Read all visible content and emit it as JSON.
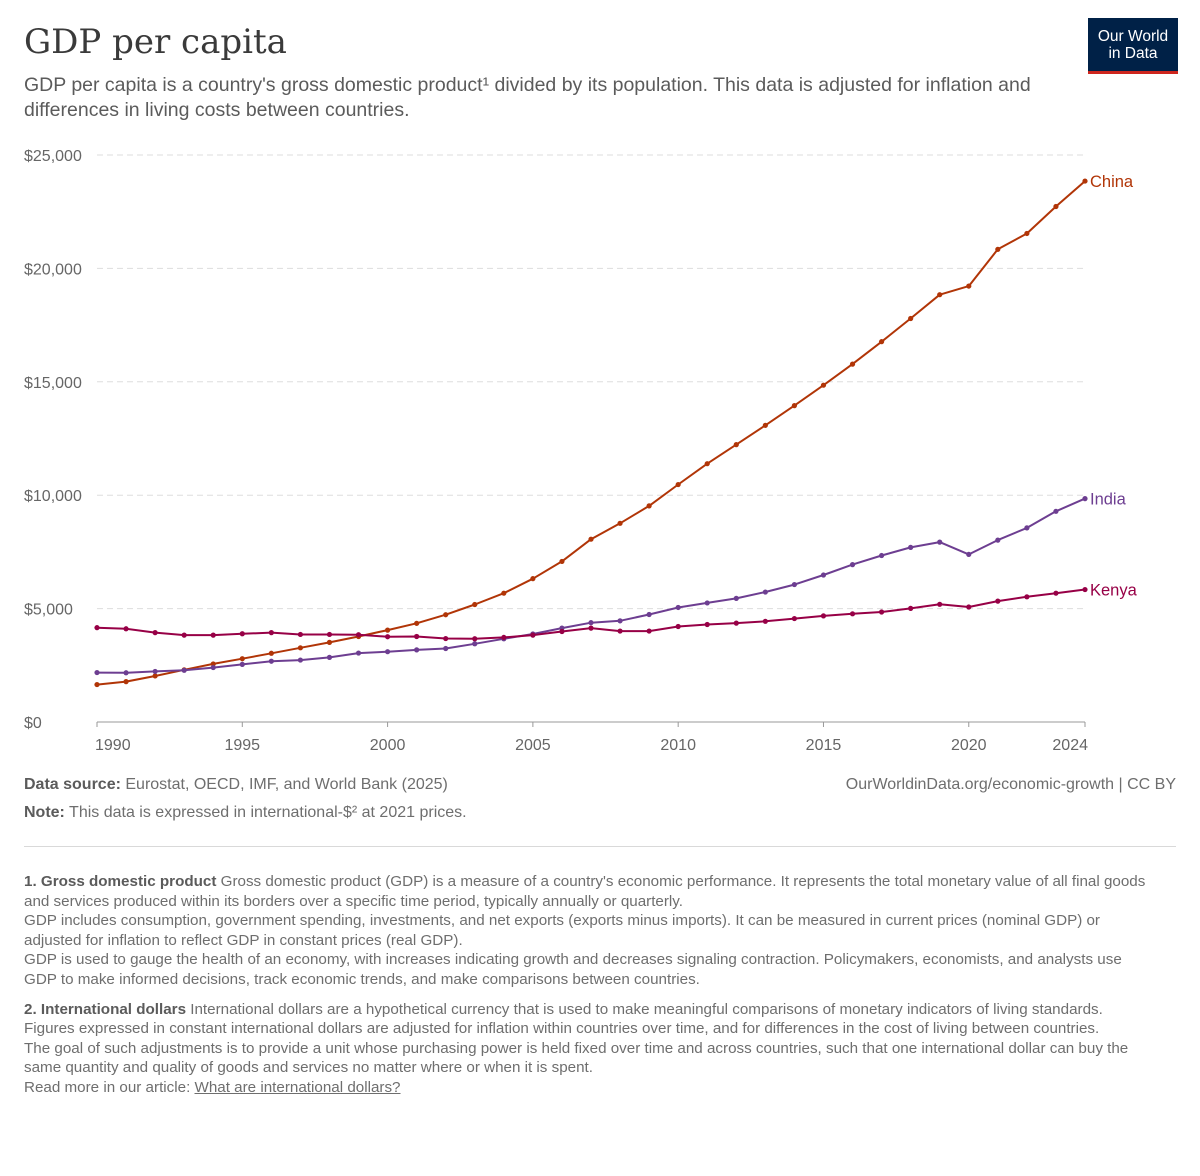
{
  "header": {
    "title": "GDP per capita",
    "subtitle": "GDP per capita is a country's gross domestic product¹ divided by its population. This data is adjusted for inflation and differences in living costs between countries.",
    "logo_line1": "Our World",
    "logo_line2": "in Data"
  },
  "chart_data": {
    "type": "line",
    "title": "GDP per capita",
    "xlabel": "",
    "ylabel": "",
    "xlim": [
      1990,
      2024
    ],
    "ylim": [
      0,
      25000
    ],
    "grid": "horizontal dashed",
    "legend": "inline labels at line ends",
    "x_ticks": [
      1990,
      1995,
      2000,
      2005,
      2010,
      2015,
      2020,
      2024
    ],
    "x_tick_labels": [
      "1990",
      "1995",
      "2000",
      "2005",
      "2010",
      "2015",
      "2020",
      "2024"
    ],
    "y_ticks": [
      0,
      5000,
      10000,
      15000,
      20000,
      25000
    ],
    "y_tick_labels": [
      "$0",
      "$5,000",
      "$10,000",
      "$15,000",
      "$20,000",
      "$25,000"
    ],
    "x": [
      1990,
      1991,
      1992,
      1993,
      1994,
      1995,
      1996,
      1997,
      1998,
      1999,
      2000,
      2001,
      2002,
      2003,
      2004,
      2005,
      2006,
      2007,
      2008,
      2009,
      2010,
      2011,
      2012,
      2013,
      2014,
      2015,
      2016,
      2017,
      2018,
      2019,
      2020,
      2021,
      2022,
      2023,
      2024
    ],
    "series": [
      {
        "name": "China",
        "color": "#b13507",
        "values": [
          1650,
          1780,
          2030,
          2300,
          2560,
          2790,
          3030,
          3270,
          3510,
          3770,
          4050,
          4350,
          4730,
          5180,
          5680,
          6320,
          7080,
          8060,
          8760,
          9530,
          10470,
          11390,
          12230,
          13080,
          13950,
          14850,
          15780,
          16770,
          17790,
          18840,
          19220,
          20840,
          21540,
          22730,
          23850
        ]
      },
      {
        "name": "India",
        "color": "#6d3e91",
        "values": [
          2180,
          2170,
          2230,
          2280,
          2400,
          2540,
          2680,
          2730,
          2850,
          3040,
          3100,
          3180,
          3240,
          3450,
          3670,
          3880,
          4140,
          4380,
          4460,
          4740,
          5050,
          5250,
          5450,
          5730,
          6060,
          6480,
          6940,
          7340,
          7700,
          7930,
          7390,
          8020,
          8560,
          9290,
          9850
        ]
      },
      {
        "name": "Kenya",
        "color": "#970046",
        "values": [
          4160,
          4110,
          3940,
          3830,
          3830,
          3890,
          3940,
          3860,
          3860,
          3850,
          3760,
          3770,
          3680,
          3670,
          3730,
          3830,
          3990,
          4140,
          4010,
          4010,
          4210,
          4300,
          4360,
          4440,
          4560,
          4680,
          4770,
          4850,
          5010,
          5190,
          5070,
          5330,
          5520,
          5680,
          5840
        ]
      }
    ]
  },
  "sources": {
    "data_source_label": "Data source:",
    "data_source_text": " Eurostat, OECD, IMF, and World Bank (2025)",
    "note_label": "Note:",
    "note_text": " This data is expressed in international-$² at 2021 prices.",
    "url": "OurWorldinData.org/economic-growth | CC BY"
  },
  "footnotes": {
    "fn1_title": "1. Gross domestic product",
    "fn1_p1": " Gross domestic product (GDP) is a measure of a country's economic performance. It represents the total monetary value of all final goods and services produced within its borders over a specific time period, typically annually or quarterly.",
    "fn1_p2": "GDP includes consumption, government spending, investments, and net exports (exports minus imports). It can be measured in current prices (nominal GDP) or adjusted for inflation to reflect GDP in constant prices (real GDP).",
    "fn1_p3": "GDP is used to gauge the health of an economy, with increases indicating growth and decreases signaling contraction. Policymakers, economists, and analysts use GDP to make informed decisions, track economic trends, and make comparisons between countries.",
    "fn2_title": "2. International dollars",
    "fn2_p1": " International dollars are a hypothetical currency that is used to make meaningful comparisons of monetary indicators of living standards.",
    "fn2_p2": "Figures expressed in constant international dollars are adjusted for inflation within countries over time, and for differences in the cost of living between countries.",
    "fn2_p3": "The goal of such adjustments is to provide a unit whose purchasing power is held fixed over time and across countries, such that one international dollar can buy the same quantity and quality of goods and services no matter where or when it is spent.",
    "fn2_read_more": "Read more in our article: ",
    "fn2_link": "What are international dollars?"
  }
}
